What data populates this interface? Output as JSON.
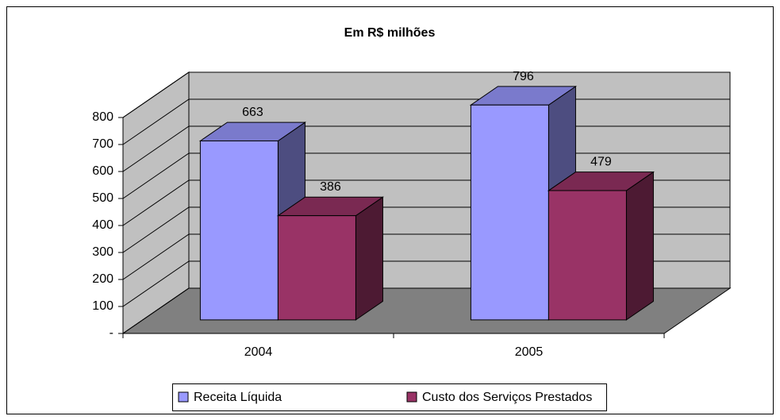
{
  "chart_data": {
    "type": "bar3d",
    "title": "Em R$ milhões",
    "categories": [
      "2004",
      "2005"
    ],
    "series": [
      {
        "name": "Receita Líquida",
        "color": "#9999ff",
        "values": [
          663,
          796
        ]
      },
      {
        "name": "Custo dos Serviços Prestados",
        "color": "#993366",
        "values": [
          386,
          479
        ]
      }
    ],
    "ylim": [
      0,
      800
    ],
    "yticks": [
      {
        "value": 0,
        "label": "-"
      },
      100,
      200,
      300,
      400,
      500,
      600,
      700,
      800
    ],
    "grid": true,
    "legend": "bottom"
  }
}
